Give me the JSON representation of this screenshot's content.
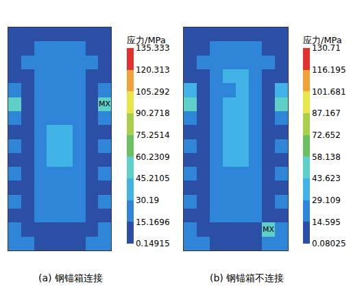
{
  "chart_data": [
    {
      "type": "heatmap",
      "title": "(a) 钢锚箱连接",
      "colorbar_title": "应力/MPa",
      "colorbar_ticks": [
        0.14915,
        15.1696,
        30.19,
        45.2105,
        60.2309,
        75.2514,
        90.2718,
        105.292,
        120.313,
        135.333
      ],
      "colors": [
        "#2b4fa5",
        "#2f86d9",
        "#41b3e6",
        "#5fcfc9",
        "#6cc061",
        "#a8d04a",
        "#e8e64a",
        "#f0a33a",
        "#e0322e"
      ],
      "max_label": "MX",
      "cells": [
        [
          8,
          8,
          8,
          8,
          8,
          8,
          8,
          8
        ],
        [
          10,
          12,
          18,
          20,
          20,
          18,
          12,
          10
        ],
        [
          8,
          20,
          22,
          24,
          24,
          22,
          20,
          8
        ],
        [
          12,
          8,
          24,
          25,
          25,
          24,
          8,
          12
        ],
        [
          30,
          10,
          22,
          24,
          24,
          22,
          10,
          30
        ],
        [
          50,
          12,
          20,
          22,
          22,
          20,
          12,
          52
        ],
        [
          28,
          8,
          22,
          25,
          25,
          22,
          8,
          28
        ],
        [
          12,
          10,
          24,
          34,
          34,
          24,
          10,
          12
        ],
        [
          28,
          8,
          24,
          36,
          36,
          24,
          8,
          28
        ],
        [
          14,
          10,
          22,
          34,
          34,
          22,
          10,
          14
        ],
        [
          26,
          8,
          20,
          24,
          24,
          20,
          8,
          26
        ],
        [
          12,
          10,
          22,
          22,
          22,
          22,
          10,
          12
        ],
        [
          26,
          8,
          20,
          18,
          18,
          20,
          8,
          26
        ],
        [
          10,
          12,
          18,
          16,
          16,
          18,
          12,
          10
        ],
        [
          22,
          8,
          12,
          6,
          6,
          12,
          8,
          22
        ],
        [
          20,
          18,
          8,
          6,
          6,
          8,
          18,
          20
        ]
      ]
    },
    {
      "type": "heatmap",
      "title": "(b) 钢锚箱不连接",
      "colorbar_title": "应力/MPa",
      "colorbar_ticks": [
        0.08025,
        14.595,
        29.109,
        43.623,
        58.138,
        72.652,
        87.167,
        101.681,
        116.195,
        130.71
      ],
      "colors": [
        "#2b4fa5",
        "#2f86d9",
        "#41b3e6",
        "#5fcfc9",
        "#6cc061",
        "#a8d04a",
        "#e8e64a",
        "#f0a33a",
        "#e0322e"
      ],
      "max_label": "MX",
      "cells": [
        [
          8,
          8,
          8,
          8,
          8,
          8,
          8,
          8
        ],
        [
          10,
          12,
          20,
          22,
          22,
          20,
          12,
          10
        ],
        [
          8,
          20,
          24,
          26,
          26,
          24,
          20,
          8
        ],
        [
          12,
          8,
          24,
          30,
          32,
          24,
          8,
          12
        ],
        [
          30,
          10,
          22,
          28,
          30,
          22,
          10,
          30
        ],
        [
          44,
          12,
          22,
          32,
          32,
          22,
          12,
          44
        ],
        [
          28,
          8,
          24,
          33,
          34,
          24,
          8,
          28
        ],
        [
          12,
          10,
          26,
          35,
          36,
          26,
          10,
          12
        ],
        [
          28,
          8,
          26,
          36,
          36,
          26,
          8,
          28
        ],
        [
          14,
          10,
          24,
          32,
          32,
          24,
          10,
          14
        ],
        [
          26,
          8,
          22,
          26,
          26,
          22,
          8,
          26
        ],
        [
          12,
          10,
          22,
          22,
          22,
          22,
          10,
          12
        ],
        [
          26,
          8,
          20,
          18,
          18,
          20,
          8,
          26
        ],
        [
          10,
          12,
          18,
          16,
          16,
          18,
          12,
          10
        ],
        [
          22,
          8,
          12,
          6,
          6,
          12,
          48,
          22
        ],
        [
          20,
          18,
          8,
          6,
          6,
          8,
          18,
          20
        ]
      ]
    }
  ]
}
